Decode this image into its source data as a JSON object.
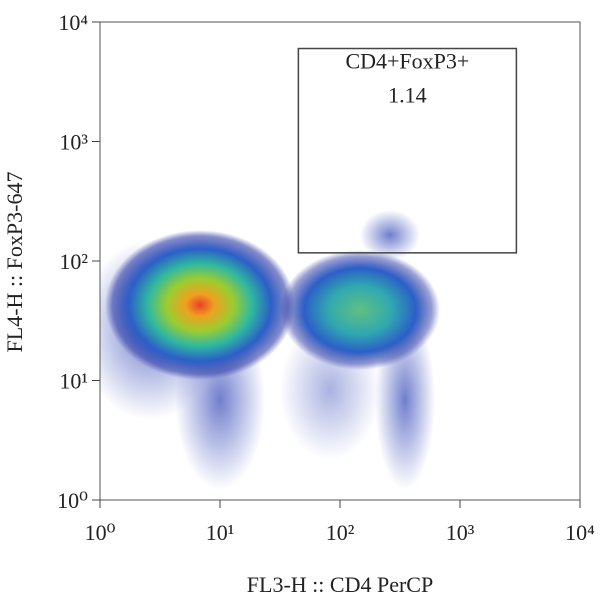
{
  "chart_data": {
    "type": "flow-density",
    "xlabel": "FL3-H :: CD4 PerCP",
    "ylabel": "FL4-H :: FoxP3-647",
    "log_x": true,
    "log_y": true,
    "xlim": [
      1,
      10000
    ],
    "ylim": [
      1,
      10000
    ],
    "xticks": [
      {
        "value": 1,
        "label": "10⁰"
      },
      {
        "value": 10,
        "label": "10¹"
      },
      {
        "value": 100,
        "label": "10²"
      },
      {
        "value": 1000,
        "label": "10³"
      },
      {
        "value": 10000,
        "label": "10⁴"
      }
    ],
    "yticks": [
      {
        "value": 1,
        "label": "10⁰"
      },
      {
        "value": 10,
        "label": "10¹"
      },
      {
        "value": 100,
        "label": "10²"
      },
      {
        "value": 1000,
        "label": "10³"
      },
      {
        "value": 10000,
        "label": "10⁴"
      }
    ],
    "gate": {
      "name": "CD4+FoxP3+",
      "percent": 1.14,
      "x": [
        45,
        2950
      ],
      "y": [
        117,
        6000
      ]
    }
  }
}
